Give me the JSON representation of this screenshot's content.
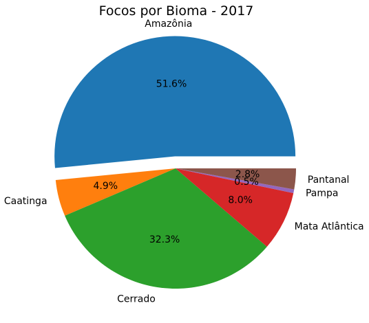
{
  "chart_data": {
    "type": "pie",
    "title": "Focos por Bioma - 2017",
    "categories": [
      "Amazônia",
      "Caatinga",
      "Cerrado",
      "Mata Atlântica",
      "Pampa",
      "Pantanal"
    ],
    "values": [
      51.6,
      4.9,
      32.3,
      8.0,
      0.5,
      2.8
    ],
    "percent_labels": [
      "51.6%",
      "4.9%",
      "32.3%",
      "8.0%",
      "0.5%",
      "2.8%"
    ],
    "colors": [
      "#1f77b4",
      "#ff7f0e",
      "#2ca02c",
      "#d62728",
      "#9467bd",
      "#8c564b"
    ],
    "explode": [
      0.1,
      0,
      0,
      0,
      0,
      0
    ],
    "start_angle_deg": 0,
    "direction": "counterclockwise"
  }
}
